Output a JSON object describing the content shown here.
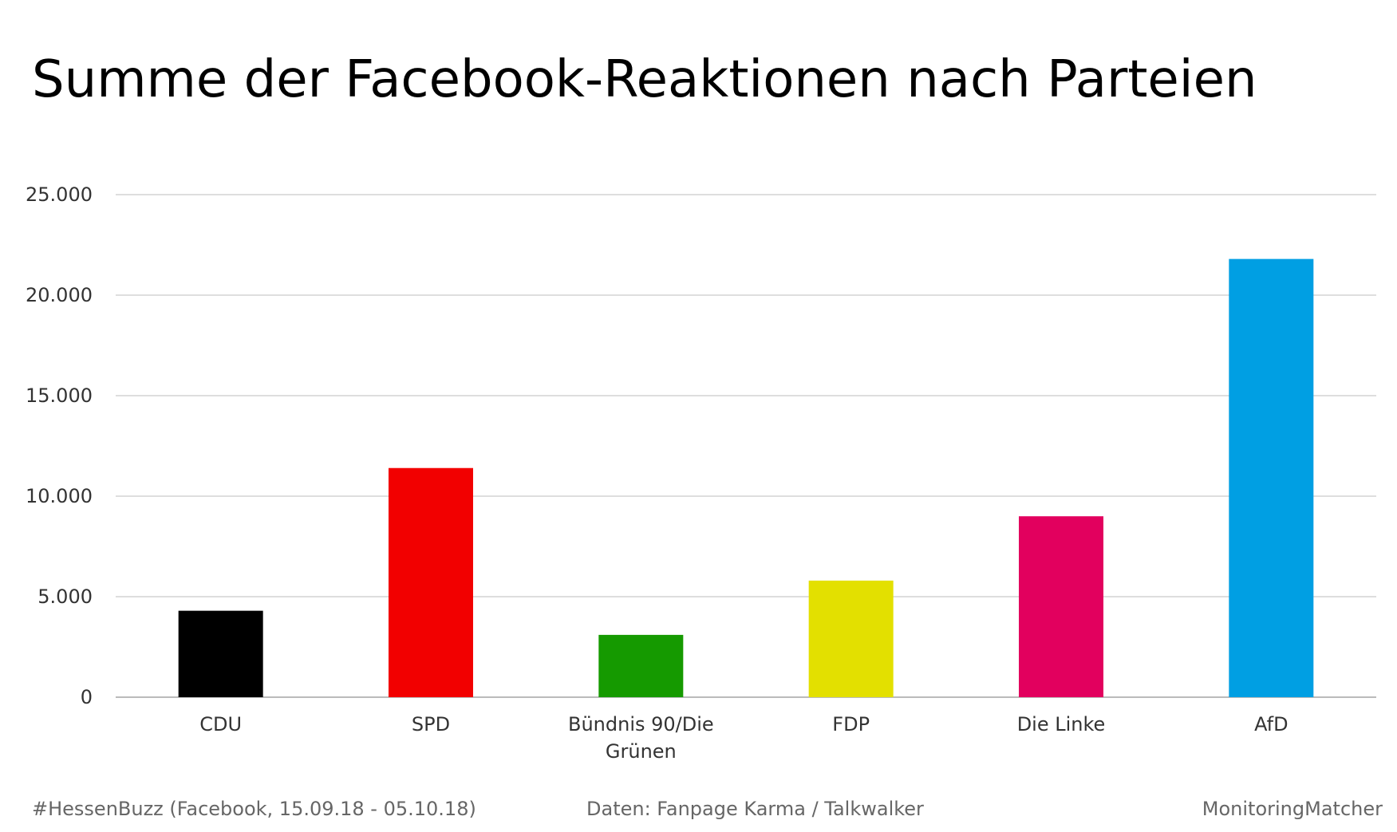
{
  "chart_data": {
    "type": "bar",
    "title": "Summe der Facebook-Reaktionen nach Parteien",
    "categories": [
      [
        "CDU"
      ],
      [
        "SPD"
      ],
      [
        "Bündnis 90/Die",
        "Grünen"
      ],
      [
        "FDP"
      ],
      [
        "Die Linke"
      ],
      [
        "AfD"
      ]
    ],
    "values": [
      4300,
      11400,
      3100,
      5800,
      9000,
      21800
    ],
    "colors": [
      "#000000",
      "#f20000",
      "#159a00",
      "#e3e000",
      "#e2005e",
      "#009fe3"
    ],
    "ylim": [
      0,
      25000
    ],
    "yticks": [
      0,
      5000,
      10000,
      15000,
      20000,
      25000
    ],
    "ytick_labels": [
      "0",
      "5.000",
      "10.000",
      "15.000",
      "20.000",
      "25.000"
    ],
    "grid": true,
    "xlabel": "",
    "ylabel": ""
  },
  "footer": {
    "left": "#HessenBuzz (Facebook, 15.09.18 - 05.10.18)",
    "center": "Daten: Fanpage Karma / Talkwalker",
    "right": "MonitoringMatcher"
  }
}
